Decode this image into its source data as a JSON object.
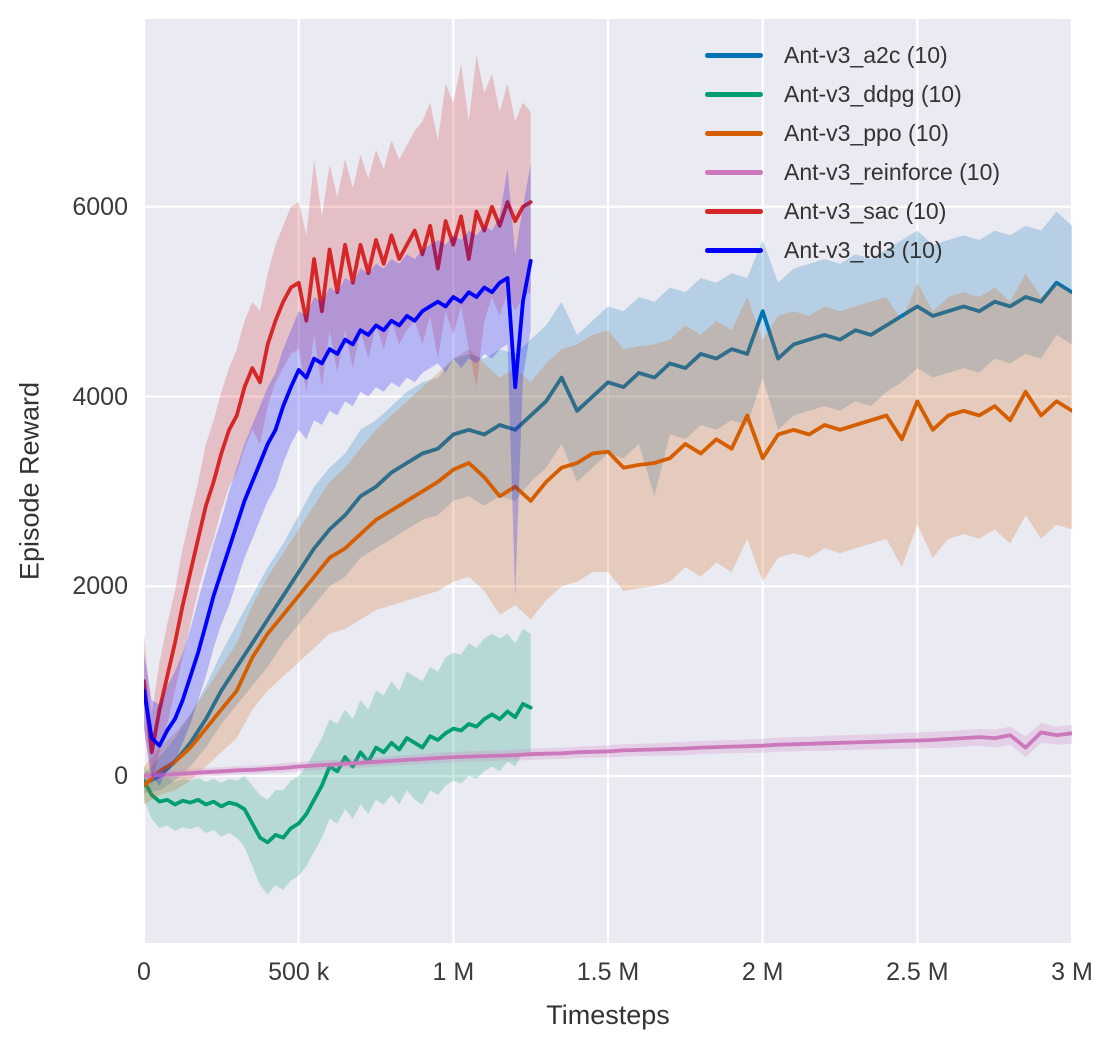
{
  "chart_data": {
    "type": "line",
    "title": "",
    "xlabel": "Timesteps",
    "ylabel": "Episode Reward",
    "xlim": [
      0,
      3000000
    ],
    "ylim": [
      -1760,
      7980
    ],
    "grid": true,
    "background": "#eaeaf2",
    "grid_color": "#ffffff",
    "legend_position": "upper right",
    "band_alpha": 0.22,
    "x_ticks": [
      {
        "value": 0,
        "label": "0"
      },
      {
        "value": 500000,
        "label": "500 k"
      },
      {
        "value": 1000000,
        "label": "1 M"
      },
      {
        "value": 1500000,
        "label": "1.5 M"
      },
      {
        "value": 2000000,
        "label": "2 M"
      },
      {
        "value": 2500000,
        "label": "2.5 M"
      },
      {
        "value": 3000000,
        "label": "3 M"
      }
    ],
    "y_ticks": [
      {
        "value": 0,
        "label": "0"
      },
      {
        "value": 2000,
        "label": "2000"
      },
      {
        "value": 4000,
        "label": "4000"
      },
      {
        "value": 6000,
        "label": "6000"
      }
    ],
    "series": [
      {
        "id": "a2c",
        "name": "Ant-v3_a2c (10)",
        "color": "#0173b2",
        "x_start": 0,
        "x_step": 50000,
        "mean": [
          -80,
          0,
          150,
          350,
          600,
          900,
          1150,
          1400,
          1650,
          1900,
          2150,
          2400,
          2600,
          2750,
          2950,
          3050,
          3200,
          3300,
          3400,
          3450,
          3600,
          3650,
          3600,
          3700,
          3650,
          3800,
          3950,
          4200,
          3850,
          4000,
          4150,
          4100,
          4250,
          4200,
          4350,
          4300,
          4450,
          4400,
          4500,
          4450,
          4900,
          4400,
          4550,
          4600,
          4650,
          4600,
          4700,
          4650,
          4750,
          4850,
          4950,
          4850,
          4900,
          4950,
          4900,
          5000,
          4950,
          5050,
          5000,
          5200,
          5100
        ],
        "lo": [
          -180,
          -150,
          -50,
          100,
          300,
          550,
          750,
          950,
          1150,
          1400,
          1600,
          1800,
          2000,
          2100,
          2300,
          2400,
          2500,
          2600,
          2700,
          2750,
          2900,
          2950,
          2850,
          2950,
          2900,
          3100,
          3250,
          3500,
          3100,
          3250,
          3400,
          3350,
          3500,
          2950,
          3600,
          3550,
          3700,
          3650,
          3750,
          3700,
          4200,
          3650,
          3800,
          3850,
          3900,
          3850,
          3950,
          3900,
          4050,
          4150,
          4300,
          4200,
          4250,
          4300,
          4250,
          4400,
          4350,
          4450,
          4400,
          4650,
          4550
        ],
        "hi": [
          20,
          200,
          400,
          650,
          950,
          1300,
          1600,
          1900,
          2200,
          2450,
          2750,
          3050,
          3250,
          3400,
          3650,
          3750,
          3900,
          4050,
          4150,
          4200,
          4400,
          4450,
          4400,
          4500,
          4450,
          4600,
          4750,
          5000,
          4650,
          4800,
          4950,
          4900,
          5050,
          5000,
          5150,
          5100,
          5250,
          5200,
          5300,
          5250,
          5650,
          5200,
          5350,
          5400,
          5450,
          5400,
          5500,
          5450,
          5550,
          5650,
          5750,
          5600,
          5650,
          5700,
          5650,
          5750,
          5700,
          5800,
          5750,
          5950,
          5800
        ]
      },
      {
        "id": "ddpg",
        "name": "Ant-v3_ddpg (10)",
        "color": "#029e73",
        "x_start": 0,
        "x_step": 25000,
        "mean": [
          -50,
          -200,
          -270,
          -250,
          -300,
          -260,
          -280,
          -250,
          -300,
          -270,
          -320,
          -280,
          -300,
          -350,
          -500,
          -650,
          -700,
          -620,
          -650,
          -550,
          -500,
          -400,
          -250,
          -100,
          100,
          50,
          200,
          100,
          250,
          150,
          300,
          250,
          350,
          280,
          400,
          350,
          300,
          420,
          380,
          450,
          500,
          480,
          550,
          520,
          600,
          650,
          600,
          680,
          620,
          760,
          720
        ],
        "lo": [
          -250,
          -450,
          -550,
          -520,
          -580,
          -540,
          -560,
          -530,
          -600,
          -570,
          -640,
          -600,
          -650,
          -750,
          -950,
          -1150,
          -1250,
          -1150,
          -1200,
          -1100,
          -1050,
          -950,
          -800,
          -650,
          -450,
          -500,
          -350,
          -450,
          -300,
          -400,
          -250,
          -300,
          -200,
          -300,
          -150,
          -250,
          -300,
          -150,
          -200,
          -100,
          -50,
          -80,
          0,
          -30,
          50,
          100,
          50,
          150,
          100,
          250,
          200
        ],
        "hi": [
          100,
          0,
          -50,
          -20,
          -60,
          -30,
          -50,
          -20,
          -60,
          -30,
          -70,
          -30,
          -50,
          0,
          -100,
          -200,
          -250,
          -150,
          -150,
          -50,
          0,
          100,
          250,
          400,
          600,
          550,
          700,
          600,
          800,
          700,
          900,
          850,
          1000,
          900,
          1100,
          1050,
          1000,
          1150,
          1100,
          1250,
          1300,
          1280,
          1400,
          1350,
          1450,
          1500,
          1450,
          1500,
          1400,
          1550,
          1500
        ]
      },
      {
        "id": "ppo",
        "name": "Ant-v3_ppo (10)",
        "color": "#d55e00",
        "x_start": 0,
        "x_step": 50000,
        "mean": [
          -100,
          50,
          150,
          300,
          500,
          700,
          900,
          1250,
          1500,
          1700,
          1900,
          2100,
          2300,
          2400,
          2550,
          2700,
          2800,
          2900,
          3000,
          3100,
          3230,
          3300,
          3150,
          2950,
          3050,
          2900,
          3100,
          3250,
          3300,
          3400,
          3420,
          3250,
          3280,
          3300,
          3350,
          3500,
          3400,
          3550,
          3450,
          3800,
          3350,
          3600,
          3650,
          3600,
          3700,
          3650,
          3700,
          3750,
          3800,
          3550,
          3950,
          3650,
          3800,
          3850,
          3800,
          3900,
          3750,
          4050,
          3800,
          3950,
          3850
        ],
        "lo": [
          -300,
          -200,
          -150,
          -50,
          100,
          250,
          400,
          700,
          900,
          1050,
          1200,
          1350,
          1500,
          1550,
          1650,
          1750,
          1800,
          1850,
          1900,
          1950,
          2050,
          2100,
          1950,
          1700,
          1800,
          1650,
          1850,
          2000,
          2050,
          2150,
          2150,
          1950,
          1980,
          2000,
          2050,
          2200,
          2100,
          2250,
          2150,
          2500,
          2050,
          2300,
          2350,
          2300,
          2400,
          2350,
          2400,
          2450,
          2500,
          2200,
          2650,
          2300,
          2500,
          2550,
          2500,
          2600,
          2450,
          2750,
          2500,
          2650,
          2600
        ],
        "hi": [
          100,
          300,
          450,
          650,
          900,
          1150,
          1400,
          1800,
          2100,
          2350,
          2600,
          2850,
          3100,
          3250,
          3450,
          3650,
          3800,
          3950,
          4100,
          4250,
          4400,
          4500,
          4350,
          4200,
          4300,
          4150,
          4350,
          4500,
          4550,
          4650,
          4700,
          4500,
          4530,
          4550,
          4600,
          4750,
          4650,
          4800,
          4700,
          5050,
          4600,
          4850,
          4900,
          4850,
          4950,
          4900,
          4950,
          5000,
          5050,
          4800,
          5200,
          4900,
          5050,
          5100,
          5050,
          5150,
          5000,
          5300,
          5050,
          5200,
          5100
        ]
      },
      {
        "id": "reinforce",
        "name": "Ant-v3_reinforce (10)",
        "color": "#cc78bc",
        "x_start": 0,
        "x_step": 50000,
        "mean": [
          0,
          10,
          20,
          30,
          40,
          50,
          60,
          65,
          75,
          85,
          100,
          110,
          120,
          130,
          140,
          150,
          160,
          170,
          180,
          190,
          200,
          205,
          210,
          215,
          220,
          230,
          235,
          240,
          250,
          255,
          260,
          270,
          275,
          280,
          285,
          290,
          300,
          305,
          310,
          315,
          320,
          330,
          335,
          340,
          345,
          350,
          355,
          360,
          365,
          370,
          375,
          380,
          390,
          400,
          410,
          400,
          430,
          300,
          460,
          430,
          450
        ],
        "lo": [
          -40,
          -35,
          -25,
          -15,
          -5,
          5,
          15,
          20,
          30,
          35,
          50,
          60,
          70,
          80,
          90,
          100,
          110,
          120,
          125,
          135,
          145,
          150,
          155,
          160,
          160,
          170,
          175,
          180,
          190,
          195,
          195,
          205,
          210,
          215,
          215,
          220,
          230,
          235,
          240,
          245,
          245,
          255,
          260,
          265,
          265,
          270,
          275,
          280,
          285,
          285,
          290,
          295,
          300,
          310,
          320,
          300,
          330,
          200,
          350,
          330,
          340
        ],
        "hi": [
          40,
          55,
          65,
          75,
          85,
          95,
          105,
          110,
          120,
          135,
          150,
          160,
          170,
          180,
          190,
          200,
          210,
          220,
          235,
          245,
          255,
          260,
          265,
          270,
          280,
          290,
          295,
          300,
          310,
          315,
          325,
          335,
          340,
          345,
          355,
          360,
          370,
          375,
          380,
          385,
          395,
          405,
          410,
          415,
          425,
          430,
          435,
          440,
          445,
          450,
          460,
          465,
          475,
          485,
          495,
          490,
          520,
          420,
          560,
          520,
          540
        ]
      },
      {
        "id": "sac",
        "name": "Ant-v3_sac (10)",
        "color": "#d62728",
        "x_start": 0,
        "x_step": 25000,
        "mean": [
          1000,
          250,
          700,
          1050,
          1400,
          1800,
          2150,
          2500,
          2850,
          3100,
          3400,
          3650,
          3800,
          4100,
          4300,
          4150,
          4550,
          4800,
          5000,
          5150,
          5200,
          4800,
          5450,
          4900,
          5550,
          5100,
          5600,
          5200,
          5600,
          5300,
          5650,
          5400,
          5700,
          5450,
          5600,
          5750,
          5500,
          5800,
          5350,
          5850,
          5600,
          5900,
          5450,
          5950,
          5750,
          6000,
          5800,
          6050,
          5850,
          6000,
          6050
        ],
        "lo": [
          500,
          -100,
          250,
          550,
          900,
          1250,
          1600,
          1950,
          2250,
          2500,
          2800,
          3050,
          3200,
          3450,
          3650,
          3500,
          3900,
          4150,
          4300,
          4450,
          4500,
          4050,
          4650,
          4100,
          4700,
          4250,
          4700,
          4300,
          4700,
          4400,
          4750,
          4500,
          4800,
          4550,
          4700,
          4800,
          4550,
          4850,
          4400,
          4900,
          4650,
          4950,
          4500,
          4100,
          4800,
          5050,
          4850,
          5100,
          4900,
          5050,
          5100
        ],
        "hi": [
          1500,
          650,
          1200,
          1600,
          1950,
          2400,
          2750,
          3100,
          3500,
          3750,
          4050,
          4300,
          4500,
          4800,
          5000,
          4900,
          5300,
          5600,
          5800,
          6000,
          6050,
          5700,
          6500,
          5900,
          6450,
          6100,
          6500,
          6200,
          6550,
          6300,
          6600,
          6400,
          6700,
          6500,
          6650,
          6800,
          6900,
          7100,
          6700,
          7300,
          7100,
          7500,
          6900,
          7600,
          7200,
          7400,
          7000,
          7300,
          6900,
          7100,
          7000
        ]
      },
      {
        "id": "td3",
        "name": "Ant-v3_td3 (10)",
        "color": "#0000ff",
        "x_start": 0,
        "x_step": 25000,
        "mean": [
          900,
          400,
          320,
          480,
          600,
          800,
          1050,
          1300,
          1600,
          1900,
          2150,
          2400,
          2650,
          2900,
          3100,
          3300,
          3500,
          3650,
          3900,
          4100,
          4280,
          4200,
          4400,
          4350,
          4500,
          4450,
          4600,
          4550,
          4700,
          4650,
          4750,
          4700,
          4800,
          4750,
          4850,
          4800,
          4900,
          4950,
          5000,
          4950,
          5050,
          5000,
          5100,
          5050,
          5150,
          5100,
          5200,
          5250,
          4100,
          5000,
          5430
        ],
        "lo": [
          500,
          0,
          -100,
          60,
          150,
          350,
          550,
          800,
          1050,
          1350,
          1600,
          1800,
          2050,
          2300,
          2500,
          2700,
          2900,
          3050,
          3300,
          3500,
          3650,
          3550,
          3750,
          3700,
          3850,
          3800,
          3950,
          3900,
          4050,
          4000,
          4100,
          4050,
          4150,
          4100,
          4200,
          4150,
          4250,
          4300,
          4350,
          4250,
          4400,
          4300,
          4400,
          4350,
          4450,
          4400,
          4500,
          4550,
          1900,
          4200,
          4700
        ],
        "hi": [
          1300,
          800,
          750,
          950,
          1100,
          1300,
          1550,
          1850,
          2150,
          2450,
          2700,
          3000,
          3250,
          3500,
          3700,
          3900,
          4100,
          4250,
          4500,
          4700,
          4900,
          4850,
          5050,
          5000,
          5150,
          5100,
          5250,
          5200,
          5350,
          5300,
          5400,
          5350,
          5450,
          5400,
          5500,
          5450,
          5550,
          5600,
          5650,
          5600,
          5700,
          5650,
          5750,
          5700,
          5800,
          5750,
          5900,
          6400,
          5500,
          6000,
          6450
        ]
      }
    ]
  }
}
